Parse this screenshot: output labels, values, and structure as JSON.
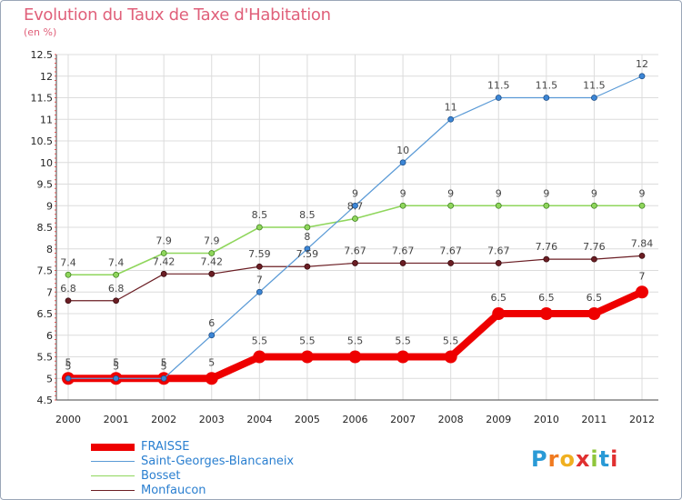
{
  "title": "Evolution du Taux de Taxe d'Habitation",
  "unit_label": "(en %)",
  "logo_text": "Proxiti",
  "colors": {
    "title": "#e0607a",
    "legend_text": "#2a7fd0",
    "fraisse": "#ee0000",
    "saint_georges": "#5a9ad6",
    "bosset": "#8fd65c",
    "monfaucon": "#6b1e24"
  },
  "chart_data": {
    "type": "line",
    "x": [
      "2000",
      "2001",
      "2002",
      "2003",
      "2004",
      "2005",
      "2006",
      "2007",
      "2008",
      "2009",
      "2010",
      "2011",
      "2012"
    ],
    "ylim": [
      4.5,
      12.5
    ],
    "yticks": [
      "4.5",
      "5",
      "5.5",
      "6",
      "6.5",
      "7",
      "7.5",
      "8",
      "8.5",
      "9",
      "9.5",
      "10",
      "10.5",
      "11",
      "11.5",
      "12",
      "12.5"
    ],
    "grid": true,
    "legend_position": "bottom-left",
    "series": [
      {
        "name": "FRAISSE",
        "values": [
          5,
          5,
          5,
          5,
          5.5,
          5.5,
          5.5,
          5.5,
          5.5,
          6.5,
          6.5,
          6.5,
          7
        ],
        "labels": [
          "5",
          "5",
          "5",
          "5",
          "5.5",
          "5.5",
          "5.5",
          "5.5",
          "5.5",
          "6.5",
          "6.5",
          "6.5",
          "7"
        ]
      },
      {
        "name": "Saint-Georges-Blancaneix",
        "values": [
          5,
          5,
          5,
          6,
          7,
          8,
          9,
          10,
          11,
          11.5,
          11.5,
          11.5,
          12
        ],
        "labels": [
          "5",
          "5",
          "5",
          "6",
          "7",
          "8",
          "9",
          "10",
          "11",
          "11.5",
          "11.5",
          "11.5",
          "12"
        ]
      },
      {
        "name": "Bosset",
        "values": [
          7.4,
          7.4,
          7.9,
          7.9,
          8.5,
          8.5,
          8.7,
          9,
          9,
          9,
          9,
          9,
          9
        ],
        "labels": [
          "7.4",
          "7.4",
          "7.9",
          "7.9",
          "8.5",
          "8.5",
          "8.7",
          "9",
          "9",
          "9",
          "9",
          "9",
          "9"
        ]
      },
      {
        "name": "Monfaucon",
        "values": [
          6.8,
          6.8,
          7.42,
          7.42,
          7.59,
          7.59,
          7.67,
          7.67,
          7.67,
          7.67,
          7.76,
          7.76,
          7.84
        ],
        "labels": [
          "6.8",
          "6.8",
          "7.42",
          "7.42",
          "7.59",
          "7.59",
          "7.67",
          "7.67",
          "7.67",
          "7.67",
          "7.76",
          "7.76",
          "7.84"
        ]
      }
    ]
  }
}
